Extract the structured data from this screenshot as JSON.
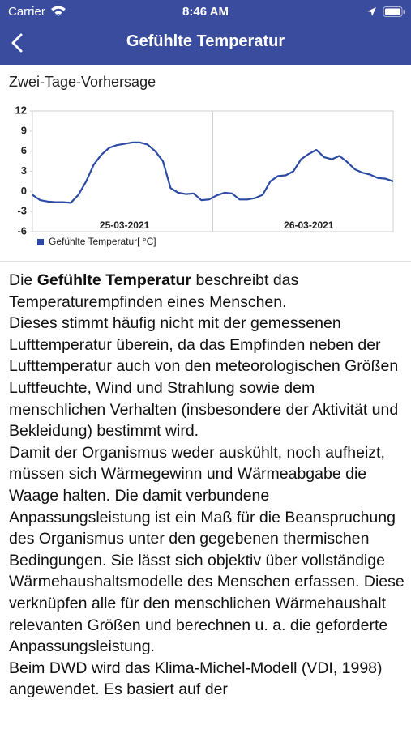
{
  "status_bar": {
    "carrier": "Carrier",
    "time": "8:46 AM"
  },
  "nav": {
    "title": "Gefühlte Temperatur"
  },
  "section_title": "Zwei-Tage-Vorhersage",
  "chart_data": {
    "type": "line",
    "categories": [
      null,
      null,
      null,
      null,
      null,
      null,
      null,
      null,
      null,
      null,
      null,
      null,
      "25-03-2021",
      null,
      null,
      null,
      null,
      null,
      null,
      null,
      null,
      null,
      null,
      null,
      null,
      null,
      null,
      null,
      null,
      null,
      null,
      null,
      null,
      null,
      null,
      null,
      "26-03-2021",
      null,
      null,
      null,
      null,
      null,
      null,
      null,
      null,
      null,
      null,
      null
    ],
    "series": [
      {
        "name": "Gefühlte Temperatur[ °C]",
        "color": "#2b4aa3",
        "values": [
          -0.5,
          -1.3,
          -1.5,
          -1.6,
          -1.6,
          -1.7,
          -0.5,
          1.5,
          4,
          5.5,
          6.5,
          6.9,
          7.1,
          7.3,
          7.3,
          7,
          6,
          4.5,
          0.5,
          -0.2,
          -0.4,
          -0.3,
          -1.3,
          -1.2,
          -0.6,
          -0.2,
          -0.3,
          -1.2,
          -1.2,
          -1,
          -0.5,
          1.5,
          2.3,
          2.4,
          3,
          4.8,
          5.6,
          6.2,
          5.1,
          4.8,
          5.3,
          4.4,
          3.3,
          2.8,
          2.5,
          2,
          1.9,
          1.5
        ]
      }
    ],
    "ylim": [
      -6,
      12
    ],
    "yticks": [
      -6,
      -3,
      0,
      3,
      6,
      9,
      12
    ],
    "grid": false,
    "legend": "bottom-left"
  },
  "body": {
    "intro": {
      "before": "Die ",
      "bold": "Gefühlte Temperatur",
      "after": " beschreibt das Temperaturempfinden eines Menschen."
    },
    "paragraphs": [
      "Dieses stimmt häufig nicht mit der gemessenen Lufttemperatur überein, da das Empfinden neben der Lufttemperatur auch von den meteorologischen Größen Luftfeuchte, Wind und Strahlung sowie dem menschlichen Verhalten (insbesondere der Aktivität und Bekleidung) bestimmt wird.",
      "Damit der Organismus weder auskühlt, noch aufheizt, müssen sich Wärmegewinn und Wärmeabgabe die Waage halten. Die damit verbundene Anpassungsleistung ist ein Maß für die Beanspruchung des Organismus unter den gegebenen thermischen Bedingungen. Sie lässt sich objektiv über vollständige Wärmehaushaltsmodelle des Menschen erfassen. Diese verknüpfen alle für den menschlichen Wärmehaushalt relevanten Größen und berechnen u. a. die geforderte Anpassungsleistung.",
      "Beim DWD wird das Klima-Michel-Modell (VDI, 1998) angewendet. Es basiert auf der"
    ]
  }
}
